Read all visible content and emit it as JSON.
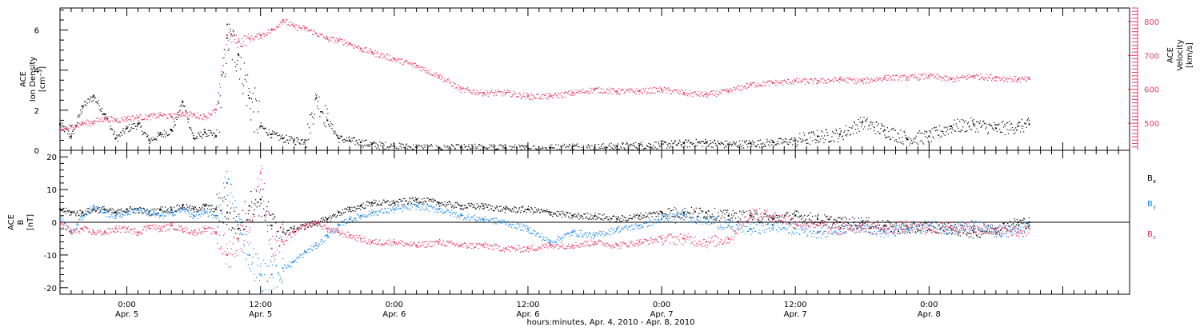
{
  "chart_data": [
    {
      "type": "scatter",
      "panel": "top",
      "left_ylabel": [
        "ACE",
        "Ion Density",
        "[cm⁻³]"
      ],
      "right_ylabel": [
        "ACE",
        "Velocity",
        "[km/s]"
      ],
      "left_ylim": [
        0,
        7.1
      ],
      "left_yticks": [
        "0",
        "2",
        "4",
        "6"
      ],
      "left_yticks_values": [
        0,
        2,
        4,
        6
      ],
      "right_ylim": [
        420,
        840
      ],
      "right_yticks": [
        "500",
        "600",
        "700",
        "800"
      ],
      "right_yticks_values": [
        500,
        600,
        700,
        800
      ],
      "x_range_hours": [
        -6,
        90
      ],
      "series": [
        {
          "key": "density",
          "color": "#000000",
          "axis": "left",
          "x": [
            -6,
            -5,
            -4,
            -3,
            -2,
            -1,
            0,
            1,
            2,
            3,
            4,
            5,
            6,
            7,
            8,
            9,
            10,
            11,
            12,
            13,
            14,
            15,
            16,
            17,
            18,
            19,
            20,
            21,
            22,
            24,
            26,
            28,
            30,
            32,
            34,
            36,
            38,
            40,
            42,
            44,
            46,
            48,
            50,
            52,
            54,
            56,
            58,
            60,
            62,
            64,
            66,
            68,
            70,
            72,
            74,
            76,
            78,
            80,
            81
          ],
          "y": [
            1.3,
            0.7,
            2.2,
            2.7,
            1.8,
            0.6,
            1.1,
            1.3,
            0.5,
            0.8,
            1.0,
            2.4,
            0.6,
            0.9,
            0.7,
            5.6,
            4.8,
            2.6,
            1.2,
            0.8,
            0.6,
            0.5,
            0.5,
            2.6,
            1.5,
            0.6,
            0.5,
            0.4,
            0.3,
            0.2,
            0.15,
            0.1,
            0.12,
            0.15,
            0.12,
            0.1,
            0.12,
            0.2,
            0.15,
            0.2,
            0.25,
            0.3,
            0.35,
            0.4,
            0.3,
            0.35,
            0.4,
            0.5,
            0.7,
            0.8,
            1.4,
            1.0,
            0.6,
            0.7,
            1.2,
            1.3,
            1.1,
            1.2,
            1.3
          ]
        },
        {
          "key": "velocity",
          "color": "#e63c6a",
          "axis": "right",
          "x": [
            -6,
            -5,
            -4,
            -3,
            -2,
            -1,
            0,
            1,
            2,
            3,
            4,
            5,
            6,
            7,
            8,
            9,
            10,
            11,
            12,
            13,
            14,
            15,
            16,
            17,
            18,
            19,
            20,
            21,
            22,
            24,
            26,
            28,
            30,
            32,
            34,
            36,
            38,
            40,
            42,
            44,
            46,
            48,
            50,
            52,
            54,
            56,
            58,
            60,
            62,
            64,
            66,
            68,
            70,
            72,
            74,
            76,
            78,
            80,
            81
          ],
          "y": [
            480,
            490,
            500,
            505,
            515,
            510,
            515,
            518,
            520,
            525,
            520,
            530,
            525,
            520,
            540,
            760,
            740,
            750,
            760,
            775,
            805,
            785,
            780,
            765,
            750,
            745,
            735,
            720,
            710,
            690,
            670,
            640,
            600,
            590,
            590,
            580,
            580,
            590,
            600,
            595,
            595,
            600,
            590,
            585,
            595,
            615,
            620,
            625,
            625,
            630,
            625,
            635,
            635,
            640,
            630,
            640,
            635,
            630,
            630
          ]
        }
      ]
    },
    {
      "type": "scatter",
      "panel": "bottom",
      "ylabel": [
        "ACE",
        "B",
        "[nT]"
      ],
      "ylim": [
        -22,
        22
      ],
      "yticks": [
        "-20",
        "-10",
        "0",
        "10",
        "20"
      ],
      "yticks_values": [
        -20,
        -10,
        0,
        10,
        20
      ],
      "zero_line": true,
      "x_range_hours": [
        -6,
        90
      ],
      "xticks": [
        {
          "hour": 0,
          "line1": "0:00",
          "line2": "Apr. 5"
        },
        {
          "hour": 12,
          "line1": "12:00",
          "line2": "Apr. 5"
        },
        {
          "hour": 24,
          "line1": "0:00",
          "line2": "Apr. 6"
        },
        {
          "hour": 36,
          "line1": "12:00",
          "line2": "Apr. 6"
        },
        {
          "hour": 48,
          "line1": "0:00",
          "line2": "Apr. 7"
        },
        {
          "hour": 60,
          "line1": "12:00",
          "line2": "Apr. 7"
        },
        {
          "hour": 72,
          "line1": "0:00",
          "line2": "Apr. 8"
        }
      ],
      "xlabel": "hours:minutes, Apr.  4, 2010 - Apr.  8, 2010",
      "series": [
        {
          "key": "bx",
          "legend": "B",
          "subscript": "x",
          "color": "#000000",
          "x": [
            -6,
            -5,
            -4,
            -3,
            -2,
            -1,
            0,
            1,
            2,
            3,
            4,
            5,
            6,
            7,
            8,
            9,
            10,
            11,
            12,
            13,
            14,
            15,
            16,
            17,
            18,
            19,
            20,
            21,
            22,
            24,
            26,
            28,
            30,
            32,
            34,
            36,
            38,
            40,
            42,
            44,
            46,
            48,
            50,
            52,
            54,
            56,
            58,
            60,
            62,
            64,
            66,
            68,
            70,
            72,
            74,
            76,
            78,
            80,
            81
          ],
          "y": [
            4,
            3,
            3,
            4,
            4,
            3,
            4,
            4,
            3,
            4,
            4,
            5,
            4,
            5,
            4,
            3,
            -2,
            5,
            7,
            -1,
            -3,
            -2,
            -1,
            0,
            1,
            3,
            4,
            5,
            6,
            6,
            7,
            6,
            5,
            5,
            4,
            4,
            3,
            2,
            2,
            1,
            2,
            3,
            3,
            3,
            2,
            2,
            1,
            2,
            1,
            0,
            0,
            -1,
            -2,
            -1,
            -2,
            -3,
            -2,
            0,
            0
          ]
        },
        {
          "key": "by",
          "legend": "B",
          "subscript": "y",
          "color": "#1e88e5",
          "x": [
            -6,
            -5,
            -4,
            -3,
            -2,
            -1,
            0,
            1,
            2,
            3,
            4,
            5,
            6,
            7,
            8,
            9,
            10,
            11,
            12,
            13,
            14,
            15,
            16,
            17,
            18,
            19,
            20,
            21,
            22,
            24,
            26,
            28,
            30,
            32,
            34,
            36,
            38,
            40,
            42,
            44,
            46,
            48,
            50,
            52,
            54,
            56,
            58,
            60,
            62,
            64,
            66,
            68,
            70,
            72,
            74,
            76,
            78,
            80,
            81
          ],
          "y": [
            1,
            -3,
            2,
            5,
            3,
            2,
            3,
            4,
            3,
            2,
            3,
            4,
            2,
            3,
            2,
            12,
            0,
            -10,
            -16,
            -16,
            -14,
            -12,
            -9,
            -7,
            -4,
            -1,
            1,
            2,
            3,
            4,
            5,
            4,
            2,
            1,
            0,
            -2,
            -6,
            -3,
            -4,
            -2,
            -1,
            1,
            2,
            1,
            -1,
            -2,
            -1,
            -2,
            -3,
            -2,
            -1,
            -3,
            -2,
            -1,
            -2,
            -1,
            -3,
            -2,
            -1
          ]
        },
        {
          "key": "bz",
          "legend": "B",
          "subscript": "z",
          "color": "#e63c6a",
          "x": [
            -6,
            -5,
            -4,
            -3,
            -2,
            -1,
            0,
            1,
            2,
            3,
            4,
            5,
            6,
            7,
            8,
            9,
            10,
            11,
            12,
            13,
            14,
            15,
            16,
            17,
            18,
            19,
            20,
            21,
            22,
            24,
            26,
            28,
            30,
            32,
            34,
            36,
            38,
            40,
            42,
            44,
            46,
            48,
            50,
            52,
            54,
            56,
            58,
            60,
            62,
            64,
            66,
            68,
            70,
            72,
            74,
            76,
            78,
            80,
            81
          ],
          "y": [
            0,
            -3,
            -2,
            -3,
            -3,
            -2,
            -2,
            -3,
            -1,
            -2,
            -1,
            -2,
            -3,
            -2,
            -3,
            -10,
            -5,
            0,
            15,
            -8,
            -6,
            -3,
            -1,
            0,
            -2,
            -3,
            -4,
            -5,
            -6,
            -6,
            -7,
            -6,
            -7,
            -7,
            -8,
            -8,
            -7,
            -7,
            -6,
            -7,
            -6,
            -5,
            -5,
            -6,
            -5,
            3,
            2,
            0,
            -1,
            -2,
            -1,
            -2,
            -1,
            -2,
            -1,
            -2,
            -2,
            -3,
            -2
          ]
        }
      ]
    }
  ]
}
